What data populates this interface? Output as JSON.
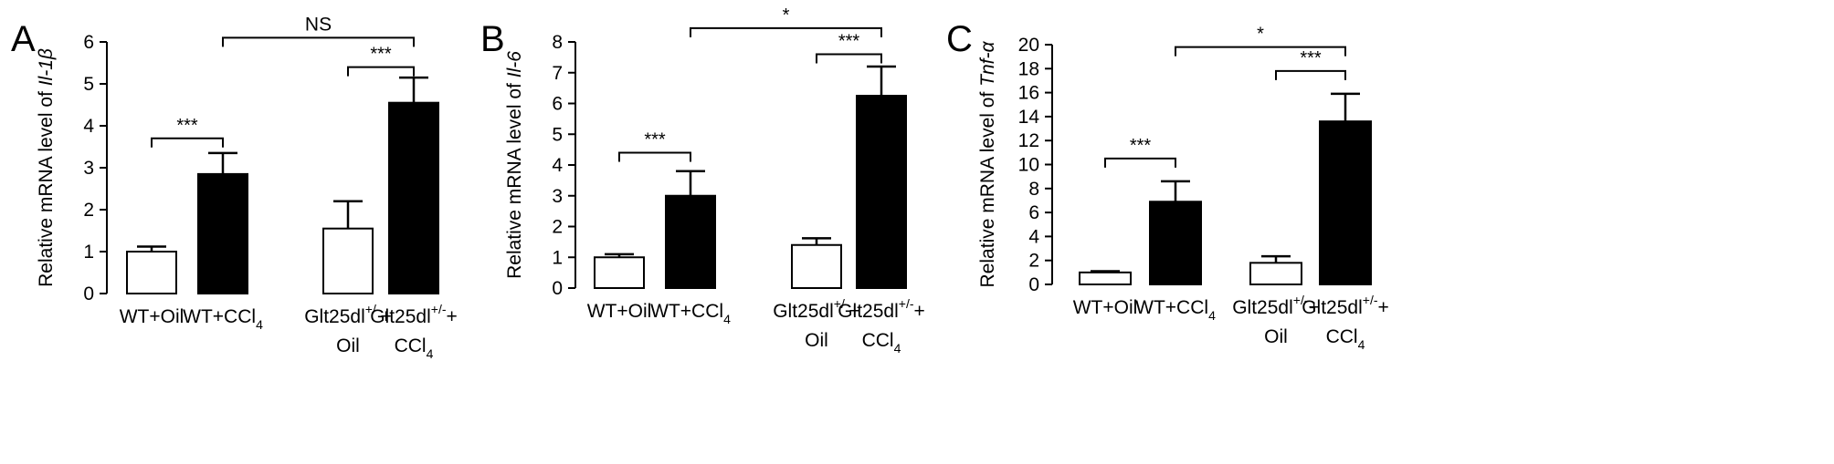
{
  "figure": {
    "background": "#ffffff",
    "ink": "#000000"
  },
  "chart_data": [
    {
      "panel_label": "A",
      "type": "bar",
      "ylabel_prefix": "Relative mRNA level of ",
      "ylabel_gene": "Il-1β",
      "ylim": [
        0,
        6
      ],
      "yticks": [
        0,
        1,
        2,
        3,
        4,
        5,
        6
      ],
      "categories": [
        {
          "lines": [
            "WT+Oil"
          ]
        },
        {
          "lines": [
            "WT+CCl4"
          ]
        },
        {
          "lines": [
            "Glt25dl+/-+",
            "Oil"
          ]
        },
        {
          "lines": [
            "Glt25dl+/-+",
            "CCl4"
          ]
        }
      ],
      "values": [
        1.0,
        2.85,
        1.55,
        4.55
      ],
      "errors": [
        0.12,
        0.5,
        0.65,
        0.6
      ],
      "fills": [
        "#ffffff",
        "#000000",
        "#ffffff",
        "#000000"
      ],
      "significance": [
        {
          "from": 0,
          "to": 1,
          "label": "***",
          "y": 3.7
        },
        {
          "from": 2,
          "to": 3,
          "label": "***",
          "y": 5.4
        },
        {
          "from": 1,
          "to": 3,
          "label": "NS",
          "y": 6.1
        }
      ]
    },
    {
      "panel_label": "B",
      "type": "bar",
      "ylabel_prefix": "Relative mRNA level of ",
      "ylabel_gene": "Il-6",
      "ylim": [
        0,
        8
      ],
      "yticks": [
        0,
        1,
        2,
        3,
        4,
        5,
        6,
        7,
        8
      ],
      "categories": [
        {
          "lines": [
            "WT+Oil"
          ]
        },
        {
          "lines": [
            "WT+CCl4"
          ]
        },
        {
          "lines": [
            "Glt25dl+/-+",
            "Oil"
          ]
        },
        {
          "lines": [
            "Glt25dl+/-+",
            "CCl4"
          ]
        }
      ],
      "values": [
        1.0,
        3.0,
        1.4,
        6.25
      ],
      "errors": [
        0.1,
        0.8,
        0.22,
        0.95
      ],
      "fills": [
        "#ffffff",
        "#000000",
        "#ffffff",
        "#000000"
      ],
      "significance": [
        {
          "from": 0,
          "to": 1,
          "label": "***",
          "y": 4.4
        },
        {
          "from": 2,
          "to": 3,
          "label": "***",
          "y": 7.6
        },
        {
          "from": 1,
          "to": 3,
          "label": "*",
          "y": 8.45
        }
      ]
    },
    {
      "panel_label": "C",
      "type": "bar",
      "ylabel_prefix": "Relative mRNA level of ",
      "ylabel_gene": "Tnf-α",
      "ylim": [
        0,
        20
      ],
      "yticks": [
        0,
        2,
        4,
        6,
        8,
        10,
        12,
        14,
        16,
        18,
        20
      ],
      "categories": [
        {
          "lines": [
            "WT+Oil"
          ]
        },
        {
          "lines": [
            "WT+CCl4"
          ]
        },
        {
          "lines": [
            "Glt25dl+/-+",
            "Oil"
          ]
        },
        {
          "lines": [
            "Glt25dl+/-+",
            "CCl4"
          ]
        }
      ],
      "values": [
        1.0,
        6.9,
        1.8,
        13.6
      ],
      "errors": [
        0.1,
        1.7,
        0.55,
        2.3
      ],
      "fills": [
        "#ffffff",
        "#000000",
        "#ffffff",
        "#000000"
      ],
      "significance": [
        {
          "from": 0,
          "to": 1,
          "label": "***",
          "y": 10.5
        },
        {
          "from": 2,
          "to": 3,
          "label": "***",
          "y": 17.8
        },
        {
          "from": 1,
          "to": 3,
          "label": "*",
          "y": 19.8
        }
      ]
    }
  ]
}
